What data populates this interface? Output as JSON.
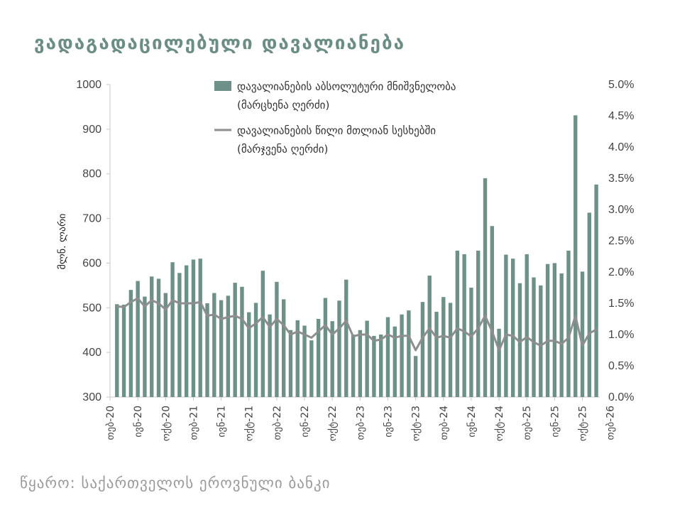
{
  "title": "ვადაგადაცილებული დავალიანება",
  "source": "წყარო: საქართველოს ეროვნული ბანკი",
  "colors": {
    "bars": "#6d9188",
    "line": "#8e8e8e",
    "title": "#6b8d85"
  },
  "chart_data": {
    "type": "bar+line",
    "ylabel": "მლნ. ლარი",
    "ylim": [
      300,
      1000
    ],
    "y_ticks": [
      "300",
      "400",
      "500",
      "600",
      "700",
      "800",
      "900",
      "1000"
    ],
    "y2lim": [
      0,
      5
    ],
    "y2_ticks": [
      "0.0%",
      "0.5%",
      "1.0%",
      "1.5%",
      "2.0%",
      "2.5%",
      "3.0%",
      "3.5%",
      "4.0%",
      "4.5%",
      "5.0%"
    ],
    "x_labels": [
      "თებ-20",
      "ივნ-20",
      "ოქტ-20",
      "თებ-21",
      "ივნ-21",
      "ოქტ-21",
      "თებ-22",
      "ივნ-22",
      "ოქტ-22",
      "თებ-23",
      "ივნ-23",
      "ოქტ-23",
      "თებ-24",
      "ივნ-24",
      "ოქტ-24",
      "თებ-25",
      "ივნ-25",
      "ოქტ-25",
      "თებ-26"
    ],
    "series": [
      {
        "name": "დავალიანების აბსოლუტური მნიშვნელობა",
        "legend_sub": "(მარცხენა ღერძი)",
        "type": "bar",
        "axis": "left",
        "values": [
          508,
          507,
          540,
          560,
          525,
          570,
          565,
          533,
          602,
          578,
          595,
          608,
          610,
          510,
          533,
          517,
          527,
          556,
          547,
          490,
          511,
          583,
          485,
          558,
          519,
          450,
          472,
          460,
          427,
          475,
          522,
          470,
          516,
          563,
          440,
          450,
          471,
          437,
          440,
          479,
          458,
          485,
          494,
          392,
          513,
          572,
          491,
          524,
          511,
          628,
          620,
          545,
          628,
          790,
          683,
          453,
          619,
          610,
          555,
          620,
          568,
          550,
          598,
          600,
          577,
          628,
          931,
          581,
          713,
          776
        ]
      },
      {
        "name": "დავალიანების წილი მთლიან სესხებში",
        "legend_sub": "(მარჯვენა ღერძი)",
        "type": "line",
        "axis": "right",
        "values": [
          1.45,
          1.44,
          1.52,
          1.58,
          1.45,
          1.55,
          1.5,
          1.4,
          1.55,
          1.5,
          1.5,
          1.5,
          1.52,
          1.3,
          1.32,
          1.25,
          1.28,
          1.3,
          1.25,
          1.1,
          1.18,
          1.28,
          1.12,
          1.25,
          1.15,
          1.0,
          1.05,
          1.0,
          0.95,
          1.05,
          1.15,
          1.0,
          1.1,
          1.22,
          0.97,
          1.0,
          1.0,
          0.9,
          0.92,
          1.0,
          0.95,
          0.98,
          0.98,
          0.75,
          0.95,
          1.1,
          0.95,
          0.98,
          0.95,
          1.1,
          1.05,
          0.97,
          1.1,
          1.3,
          1.05,
          0.75,
          1.0,
          0.98,
          0.88,
          0.96,
          0.88,
          0.82,
          0.9,
          0.9,
          0.85,
          0.95,
          1.3,
          0.82,
          1.02,
          1.08
        ]
      }
    ]
  }
}
